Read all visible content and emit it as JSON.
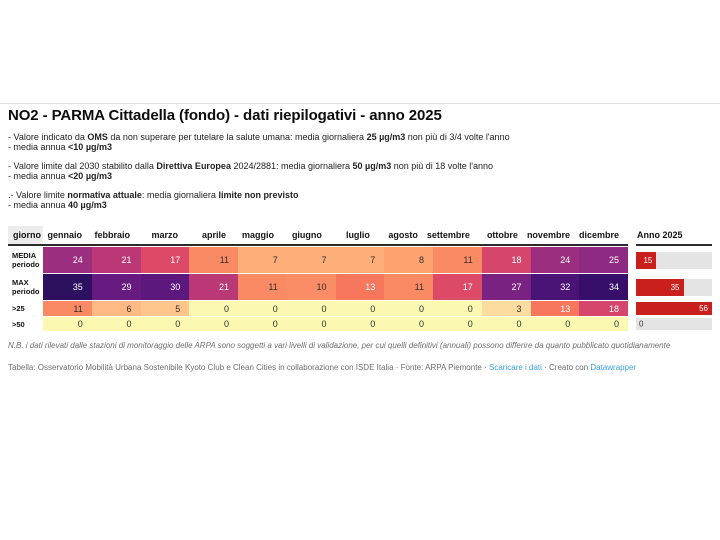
{
  "colors": {
    "bar_red": "#c9201e",
    "bar_track": "#e4e4e4",
    "link_blue": "#3ea2dc",
    "header_rule": "#2b2b2b",
    "value_text_dark": "#2e2e2e",
    "value_text_light": "#ffffff"
  },
  "chart_data": {
    "type": "table",
    "title": "NO2 - PARMA Cittadella (fondo) - dati riepilogativi - anno 2025",
    "corner_header": "giorno",
    "columns": [
      "gennaio",
      "febbraio",
      "marzo",
      "aprile",
      "maggio",
      "giugno",
      "luglio",
      "agosto",
      "settembre",
      "ottobre",
      "novembre",
      "dicembre"
    ],
    "anno_header": "Anno 2025",
    "rows": [
      {
        "label_lines": [
          "MEDIA",
          "periodo"
        ],
        "values": [
          24,
          21,
          17,
          11,
          7,
          7,
          7,
          8,
          11,
          18,
          24,
          25
        ],
        "cell_colors": [
          "#9b2e7f",
          "#bb3877",
          "#dd4a67",
          "#fa8a63",
          "#feae79",
          "#feae79",
          "#feae79",
          "#fea370",
          "#fa8a63",
          "#d6456b",
          "#9b2e7f",
          "#8e2a81"
        ],
        "anno_value": 15
      },
      {
        "label_lines": [
          "MAX",
          "periodo"
        ],
        "values": [
          35,
          29,
          30,
          21,
          11,
          10,
          13,
          11,
          17,
          27,
          32,
          34
        ],
        "cell_colors": [
          "#2e1060",
          "#671b80",
          "#5d187d",
          "#bb3877",
          "#fa8a63",
          "#fb8d66",
          "#f7775d",
          "#fa8a63",
          "#dd4a67",
          "#7a2281",
          "#4a1376",
          "#370f6a"
        ],
        "anno_value": 35
      },
      {
        "label_lines": [
          ">25"
        ],
        "values": [
          11,
          6,
          5,
          0,
          0,
          0,
          0,
          0,
          0,
          3,
          13,
          18
        ],
        "cell_colors": [
          "#fa8a63",
          "#feba82",
          "#fec68b",
          "#fbf9b1",
          "#fbf9b1",
          "#fbf9b1",
          "#fbf9b1",
          "#fbf9b1",
          "#fbf9b1",
          "#fddc9f",
          "#f7775d",
          "#d6456b"
        ],
        "anno_value": 56
      },
      {
        "label_lines": [
          ">50"
        ],
        "values": [
          0,
          0,
          0,
          0,
          0,
          0,
          0,
          0,
          0,
          0,
          0,
          0
        ],
        "cell_colors": [
          "#fbf9b1",
          "#fbf9b1",
          "#fbf9b1",
          "#fbf9b1",
          "#fbf9b1",
          "#fbf9b1",
          "#fbf9b1",
          "#fbf9b1",
          "#fbf9b1",
          "#fbf9b1",
          "#fbf9b1",
          "#fbf9b1"
        ],
        "anno_value": 0
      }
    ],
    "anno_bar": {
      "max": 56
    },
    "value_text_light_threshold": 13
  },
  "annotations": [
    {
      "lines": [
        [
          {
            "t": "- Valore indicato da "
          },
          {
            "t": "OMS",
            "b": 1
          },
          {
            "t": " da non superare per tutelare la salute umana: media giornaliera "
          },
          {
            "t": "25 µg/m3",
            "b": 1
          },
          {
            "t": " non più di 3/4 volte l'anno"
          }
        ],
        [
          {
            "t": "- media annua "
          },
          {
            "t": "<10 µg/m3",
            "b": 1
          }
        ]
      ]
    },
    {
      "lines": [
        [
          {
            "t": "- Valore limite dal 2030 stabilito dalla "
          },
          {
            "t": "Direttiva Europea",
            "b": 1
          },
          {
            "t": " 2024/2881: media giornaliera "
          },
          {
            "t": "50 µg/m3",
            "b": 1
          },
          {
            "t": " non più di 18 volte l'anno"
          }
        ],
        [
          {
            "t": "- media annua "
          },
          {
            "t": "<20 µg/m3",
            "b": 1
          }
        ]
      ]
    },
    {
      "lines": [
        [
          {
            "t": ".- Valore limite "
          },
          {
            "t": "normativa attuale",
            "b": 1
          },
          {
            "t": ": media giornaliera "
          },
          {
            "t": "limite non previsto",
            "b": 1
          }
        ],
        [
          {
            "t": "- media annua "
          },
          {
            "t": "40 µg/m3",
            "b": 1
          }
        ]
      ]
    }
  ],
  "footer": {
    "note": "N.B. i dati rilevati dalle stazioni di monitoraggio delle ARPA sono soggetti a vari livelli di validazione, per cui quelli definitivi (annuali) possono differire da quanto pubblicato quotidianamente",
    "credits": [
      {
        "t": "Tabella: Osservatorio Mobilità Urbana Sostenibile Kyoto Club e Clean Cities in collaborazione con ISDE Italia · Fonte: ARPA Piemonte · "
      },
      {
        "t": "Scaricare i dati",
        "link": 1
      },
      {
        "t": " · Creato con "
      },
      {
        "t": "Datawrapper",
        "link": 1
      }
    ]
  }
}
